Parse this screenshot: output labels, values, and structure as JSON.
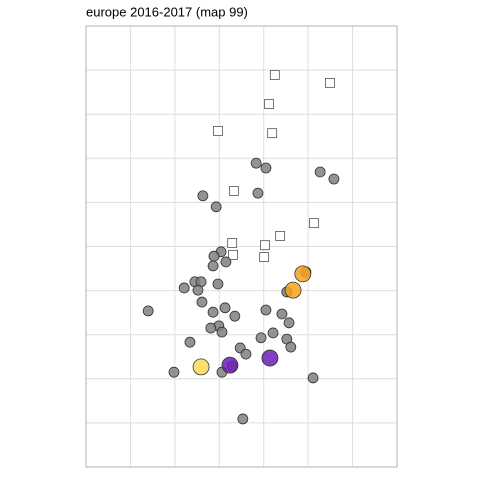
{
  "chart_data": {
    "type": "scatter",
    "title": "europe 2016-2017  (map 99)",
    "xlim": [
      0,
      7
    ],
    "ylim": [
      0,
      10
    ],
    "xticks": [
      1,
      2,
      3,
      4,
      5,
      6
    ],
    "yticks": [
      1,
      2,
      3,
      4,
      5,
      6,
      7,
      8,
      9
    ],
    "grid": true,
    "series": [
      {
        "color": "#ffffff",
        "marker": "square",
        "size": 9,
        "x": [
          4.25,
          5.49,
          4.12,
          2.97,
          4.19,
          3.33,
          5.13,
          4.37,
          3.29,
          4.03,
          3.31,
          4.01
        ],
        "values": [
          8.89,
          8.71,
          8.23,
          7.62,
          7.57,
          6.26,
          5.53,
          5.24,
          5.08,
          5.03,
          4.81,
          4.76
        ]
      },
      {
        "color": "#808080",
        "marker": "circle",
        "size": 5,
        "x": [
          3.83,
          4.05,
          5.27,
          5.58,
          2.63,
          3.87,
          2.93,
          3.04,
          2.88,
          2.86,
          3.15,
          2.45,
          2.59,
          2.21,
          2.52,
          2.97,
          4.95,
          4.52,
          1.4,
          2.61,
          2.86,
          3.13,
          3.35,
          4.05,
          4.41,
          4.57,
          2.99,
          2.81,
          3.06,
          4.21,
          3.94,
          2.34,
          4.52,
          4.61,
          3.47,
          3.6,
          1.98,
          3.06,
          3.29,
          5.11,
          3.53
        ],
        "values": [
          6.89,
          6.78,
          6.69,
          6.53,
          6.15,
          6.21,
          5.9,
          4.88,
          4.78,
          4.56,
          4.65,
          4.2,
          4.2,
          4.06,
          4.01,
          4.15,
          4.42,
          3.97,
          3.54,
          3.74,
          3.51,
          3.61,
          3.42,
          3.56,
          3.47,
          3.27,
          3.2,
          3.15,
          3.06,
          3.04,
          2.93,
          2.83,
          2.9,
          2.72,
          2.7,
          2.56,
          2.15,
          2.15,
          2.29,
          2.02,
          1.09
        ]
      },
      {
        "color": "#f7a21b",
        "marker": "circle",
        "size": 8,
        "x": [
          4.88,
          4.66
        ],
        "values": [
          4.38,
          4.01
        ]
      },
      {
        "color": "#6a1fb5",
        "marker": "circle",
        "size": 8,
        "x": [
          3.24,
          4.14
        ],
        "values": [
          2.31,
          2.47
        ]
      },
      {
        "color": "#fdd858",
        "marker": "circle",
        "size": 8,
        "x": [
          2.59
        ],
        "values": [
          2.27
        ]
      }
    ]
  }
}
